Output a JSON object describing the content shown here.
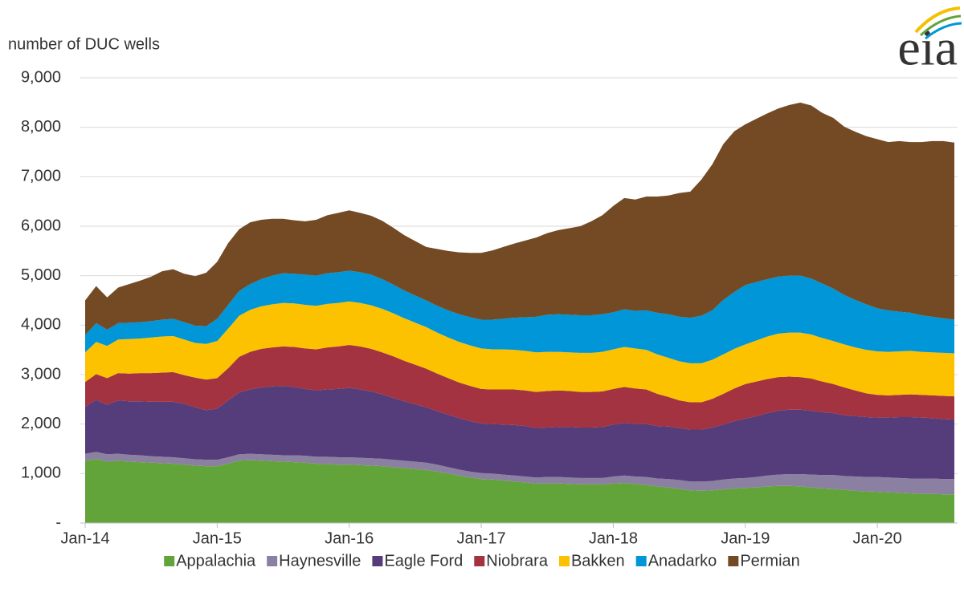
{
  "chart_data": {
    "type": "stacked_area",
    "y_axis_label": "number of DUC wells",
    "logo": "eia",
    "categories": [
      "Jan-14",
      null,
      null,
      null,
      null,
      null,
      null,
      null,
      null,
      null,
      null,
      null,
      "Jan-15",
      null,
      null,
      null,
      null,
      null,
      null,
      null,
      null,
      null,
      null,
      null,
      "Jan-16",
      null,
      null,
      null,
      null,
      null,
      null,
      null,
      null,
      null,
      null,
      null,
      "Jan-17",
      null,
      null,
      null,
      null,
      null,
      null,
      null,
      null,
      null,
      null,
      null,
      "Jan-18",
      null,
      null,
      null,
      null,
      null,
      null,
      null,
      null,
      null,
      null,
      null,
      "Jan-19",
      null,
      null,
      null,
      null,
      null,
      null,
      null,
      null,
      null,
      null,
      null,
      "Jan-20",
      null,
      null,
      null,
      null,
      null,
      null,
      null
    ],
    "ylim": [
      0,
      9000
    ],
    "yticks": [
      {
        "value": 0,
        "label": "-"
      },
      {
        "value": 1000,
        "label": "1,000"
      },
      {
        "value": 2000,
        "label": "2,000"
      },
      {
        "value": 3000,
        "label": "3,000"
      },
      {
        "value": 4000,
        "label": "4,000"
      },
      {
        "value": 5000,
        "label": "5,000"
      },
      {
        "value": 6000,
        "label": "6,000"
      },
      {
        "value": 7000,
        "label": "7,000"
      },
      {
        "value": 8000,
        "label": "8,000"
      },
      {
        "value": 9000,
        "label": "9,000"
      }
    ],
    "grid": true,
    "legend": "bottom",
    "series": [
      {
        "name": "Appalachia",
        "color": "#62a43a",
        "values": [
          1250,
          1300,
          1240,
          1260,
          1240,
          1230,
          1220,
          1210,
          1200,
          1180,
          1160,
          1150,
          1150,
          1200,
          1260,
          1270,
          1260,
          1250,
          1240,
          1230,
          1220,
          1200,
          1190,
          1180,
          1180,
          1170,
          1160,
          1150,
          1130,
          1110,
          1090,
          1070,
          1040,
          1000,
          960,
          920,
          890,
          880,
          860,
          840,
          820,
          800,
          800,
          800,
          790,
          780,
          780,
          780,
          800,
          810,
          790,
          770,
          740,
          720,
          690,
          660,
          650,
          660,
          680,
          700,
          710,
          720,
          740,
          750,
          750,
          740,
          720,
          700,
          690,
          670,
          650,
          640,
          630,
          620,
          610,
          600,
          590,
          590,
          580,
          580
        ]
      },
      {
        "name": "Haynesville",
        "color": "#8c80a2",
        "values": [
          150,
          140,
          150,
          140,
          140,
          140,
          130,
          130,
          130,
          130,
          130,
          130,
          130,
          130,
          130,
          130,
          130,
          130,
          130,
          140,
          140,
          140,
          150,
          150,
          150,
          150,
          150,
          150,
          150,
          150,
          150,
          150,
          140,
          130,
          120,
          120,
          120,
          120,
          120,
          120,
          120,
          120,
          130,
          130,
          130,
          130,
          130,
          130,
          140,
          150,
          150,
          160,
          160,
          170,
          180,
          180,
          190,
          190,
          200,
          200,
          200,
          210,
          220,
          230,
          240,
          250,
          260,
          270,
          280,
          280,
          290,
          290,
          300,
          300,
          300,
          300,
          310,
          310,
          310,
          310
        ]
      },
      {
        "name": "Eagle Ford",
        "color": "#553c7b",
        "values": [
          950,
          1050,
          1000,
          1080,
          1080,
          1090,
          1100,
          1110,
          1120,
          1100,
          1050,
          1000,
          1030,
          1150,
          1250,
          1300,
          1350,
          1380,
          1400,
          1380,
          1350,
          1340,
          1360,
          1380,
          1400,
          1380,
          1350,
          1300,
          1250,
          1200,
          1160,
          1120,
          1080,
          1060,
          1040,
          1020,
          1000,
          1000,
          1010,
          1020,
          1020,
          1000,
          1000,
          1010,
          1020,
          1020,
          1020,
          1030,
          1050,
          1060,
          1060,
          1070,
          1060,
          1060,
          1050,
          1050,
          1050,
          1080,
          1110,
          1160,
          1200,
          1230,
          1260,
          1290,
          1300,
          1300,
          1290,
          1270,
          1250,
          1230,
          1220,
          1210,
          1200,
          1210,
          1230,
          1240,
          1230,
          1220,
          1210,
          1200
        ]
      },
      {
        "name": "Niobrara",
        "color": "#a33340",
        "values": [
          500,
          520,
          540,
          550,
          560,
          570,
          580,
          590,
          600,
          580,
          600,
          620,
          620,
          650,
          720,
          760,
          780,
          790,
          800,
          810,
          820,
          830,
          850,
          860,
          870,
          870,
          860,
          850,
          840,
          820,
          800,
          780,
          760,
          740,
          720,
          710,
          700,
          700,
          710,
          720,
          720,
          730,
          740,
          740,
          730,
          720,
          720,
          720,
          720,
          730,
          720,
          700,
          650,
          600,
          560,
          550,
          550,
          580,
          620,
          660,
          700,
          700,
          690,
          680,
          670,
          660,
          650,
          620,
          590,
          560,
          520,
          480,
          460,
          450,
          450,
          460,
          460,
          460,
          470,
          470
        ]
      },
      {
        "name": "Bakken",
        "color": "#fcc200",
        "values": [
          600,
          650,
          650,
          680,
          700,
          700,
          720,
          730,
          730,
          720,
          700,
          720,
          750,
          800,
          830,
          850,
          860,
          870,
          880,
          880,
          880,
          880,
          880,
          880,
          880,
          880,
          880,
          880,
          870,
          860,
          850,
          840,
          830,
          820,
          820,
          820,
          820,
          810,
          810,
          800,
          800,
          800,
          790,
          780,
          780,
          790,
          790,
          800,
          800,
          810,
          810,
          800,
          800,
          790,
          790,
          790,
          790,
          790,
          800,
          800,
          800,
          830,
          860,
          880,
          890,
          900,
          890,
          880,
          870,
          870,
          870,
          880,
          880,
          880,
          880,
          880,
          870,
          870,
          870,
          870
        ]
      },
      {
        "name": "Anadarko",
        "color": "#0096d7",
        "values": [
          350,
          380,
          330,
          330,
          330,
          330,
          330,
          340,
          350,
          350,
          350,
          360,
          450,
          480,
          500,
          520,
          550,
          580,
          600,
          600,
          610,
          610,
          620,
          620,
          620,
          620,
          620,
          600,
          580,
          560,
          550,
          540,
          540,
          550,
          560,
          570,
          580,
          600,
          620,
          650,
          680,
          720,
          750,
          760,
          760,
          760,
          760,
          760,
          750,
          760,
          760,
          800,
          840,
          880,
          900,
          920,
          960,
          1000,
          1100,
          1150,
          1200,
          1180,
          1160,
          1150,
          1150,
          1150,
          1130,
          1100,
          1060,
          1000,
          960,
          920,
          870,
          840,
          800,
          770,
          740,
          720,
          700,
          680
        ]
      },
      {
        "name": "Permian",
        "color": "#734a24",
        "values": [
          700,
          750,
          650,
          720,
          780,
          840,
          900,
          980,
          1000,
          980,
          1000,
          1080,
          1150,
          1250,
          1250,
          1250,
          1200,
          1150,
          1100,
          1080,
          1080,
          1130,
          1170,
          1200,
          1220,
          1200,
          1190,
          1180,
          1150,
          1120,
          1100,
          1080,
          1150,
          1200,
          1250,
          1300,
          1350,
          1400,
          1450,
          1500,
          1550,
          1600,
          1650,
          1700,
          1750,
          1800,
          1900,
          2000,
          2150,
          2250,
          2250,
          2300,
          2350,
          2400,
          2500,
          2550,
          2750,
          2950,
          3150,
          3250,
          3250,
          3300,
          3350,
          3400,
          3450,
          3500,
          3500,
          3450,
          3450,
          3400,
          3400,
          3400,
          3420,
          3400,
          3450,
          3450,
          3500,
          3550,
          3580,
          3580
        ]
      }
    ]
  }
}
